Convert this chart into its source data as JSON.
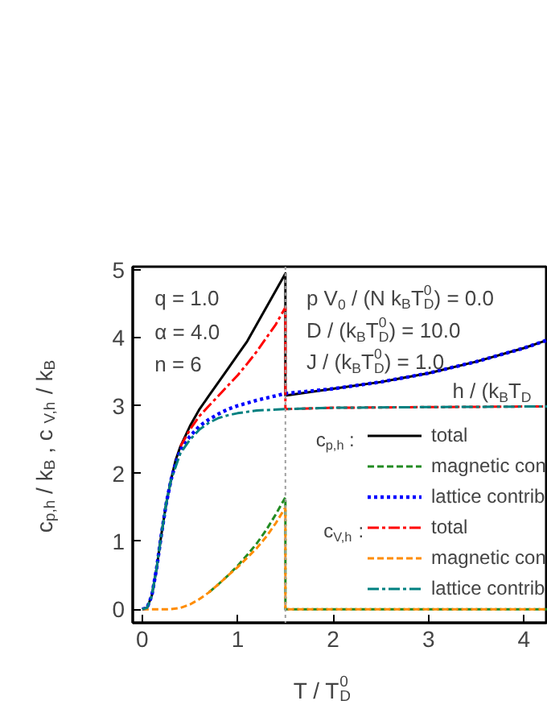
{
  "chart_data": {
    "type": "line",
    "xlabel": "T / T$_{D}$$^{0}$",
    "ylabel": "c$_{p,h}$ / k$_{B}$ ,  c$_{V,h}$ / k$_{B}$",
    "xlim": [
      -0.1,
      4.25
    ],
    "ylim": [
      -0.2,
      5.05
    ],
    "xticks": [
      0,
      1,
      2,
      3,
      4
    ],
    "yticks": [
      0,
      1,
      2,
      3,
      4,
      5
    ],
    "grid": false,
    "legend": "bottom right",
    "annotations": [
      "q = 1.0",
      "α = 4.0",
      "n = 6",
      "p V$_{0}$ / (N k$_{B}$T$_{D}$$^{0}$) = 0.0",
      "D / (k$_{B}$T$_{D}$$^{0}$) = 10.0",
      "J / (k$_{B}$T$_{D}$$^{0}$) = 1.0",
      "h / (k$_{B}$T$_{D}$",
      "c$_{p,h}$ :",
      "c$_{V,h}$ :"
    ],
    "ref_lines": [
      {
        "axis": "x",
        "value": 1.5,
        "label": null,
        "color": "#a0a0a0",
        "line_style": "dotted"
      }
    ],
    "series": [
      {
        "name": "total",
        "color": "#000000",
        "line_style": "solid",
        "x": [
          0,
          0.05,
          0.1,
          0.15,
          0.2,
          0.25,
          0.3,
          0.35,
          0.4,
          0.5,
          0.6,
          0.7,
          0.8,
          0.9,
          1.0,
          1.1,
          1.2,
          1.3,
          1.4,
          1.5,
          1.5,
          2.0,
          2.5,
          3.0,
          3.5,
          4.0,
          4.25
        ],
        "values": [
          0,
          0.02,
          0.2,
          0.6,
          1.1,
          1.55,
          1.9,
          2.2,
          2.4,
          2.7,
          2.95,
          3.15,
          3.35,
          3.55,
          3.75,
          3.95,
          4.2,
          4.45,
          4.7,
          4.95,
          3.15,
          3.25,
          3.35,
          3.48,
          3.65,
          3.85,
          3.97
        ]
      },
      {
        "name": "magnetic con",
        "color": "#228b22",
        "line_style": "dashed",
        "x": [
          0.7,
          0.8,
          0.9,
          1.0,
          1.1,
          1.2,
          1.3,
          1.4,
          1.5,
          1.5,
          4.25
        ],
        "values": [
          0.25,
          0.37,
          0.5,
          0.64,
          0.8,
          0.97,
          1.17,
          1.4,
          1.65,
          0,
          0
        ]
      },
      {
        "name": "lattice contrib",
        "color": "#0000ff",
        "line_style": "dotted",
        "x": [
          0,
          0.05,
          0.1,
          0.15,
          0.2,
          0.25,
          0.3,
          0.35,
          0.4,
          0.5,
          0.6,
          0.7,
          0.8,
          0.9,
          1.0,
          1.2,
          1.5,
          2.0,
          2.5,
          3.0,
          3.5,
          4.0,
          4.25
        ],
        "values": [
          0,
          0.02,
          0.2,
          0.6,
          1.1,
          1.55,
          1.9,
          2.15,
          2.35,
          2.55,
          2.7,
          2.8,
          2.88,
          2.95,
          3.0,
          3.08,
          3.18,
          3.25,
          3.35,
          3.48,
          3.65,
          3.85,
          3.97
        ]
      },
      {
        "name": "total",
        "color": "#ff0000",
        "line_style": "dashdot",
        "x": [
          0.4,
          0.5,
          0.6,
          0.7,
          0.8,
          0.9,
          1.0,
          1.1,
          1.2,
          1.3,
          1.4,
          1.5,
          1.5,
          2.0,
          3.0,
          4.25
        ],
        "values": [
          2.4,
          2.65,
          2.85,
          3.0,
          3.15,
          3.3,
          3.45,
          3.62,
          3.8,
          4.0,
          4.2,
          4.45,
          2.95,
          2.97,
          2.98,
          2.99
        ]
      },
      {
        "name": "magnetic con",
        "color": "#ff8c00",
        "line_style": "dashed",
        "x": [
          0,
          0.3,
          0.4,
          0.5,
          0.6,
          0.7,
          0.8,
          0.9,
          1.0,
          1.1,
          1.2,
          1.3,
          1.4,
          1.5,
          1.5,
          4.25
        ],
        "values": [
          0,
          0,
          0.02,
          0.07,
          0.15,
          0.25,
          0.37,
          0.5,
          0.62,
          0.76,
          0.9,
          1.07,
          1.27,
          1.5,
          0,
          0
        ]
      },
      {
        "name": "lattice contrib",
        "color": "#008080",
        "line_style": "dashdot",
        "x": [
          0,
          0.05,
          0.1,
          0.15,
          0.2,
          0.25,
          0.3,
          0.35,
          0.4,
          0.5,
          0.6,
          0.7,
          0.8,
          0.9,
          1.0,
          1.2,
          1.5,
          2.0,
          3.0,
          4.25
        ],
        "values": [
          0,
          0.02,
          0.2,
          0.6,
          1.1,
          1.55,
          1.9,
          2.1,
          2.3,
          2.5,
          2.65,
          2.75,
          2.82,
          2.86,
          2.89,
          2.93,
          2.95,
          2.97,
          2.98,
          2.99
        ]
      }
    ]
  }
}
